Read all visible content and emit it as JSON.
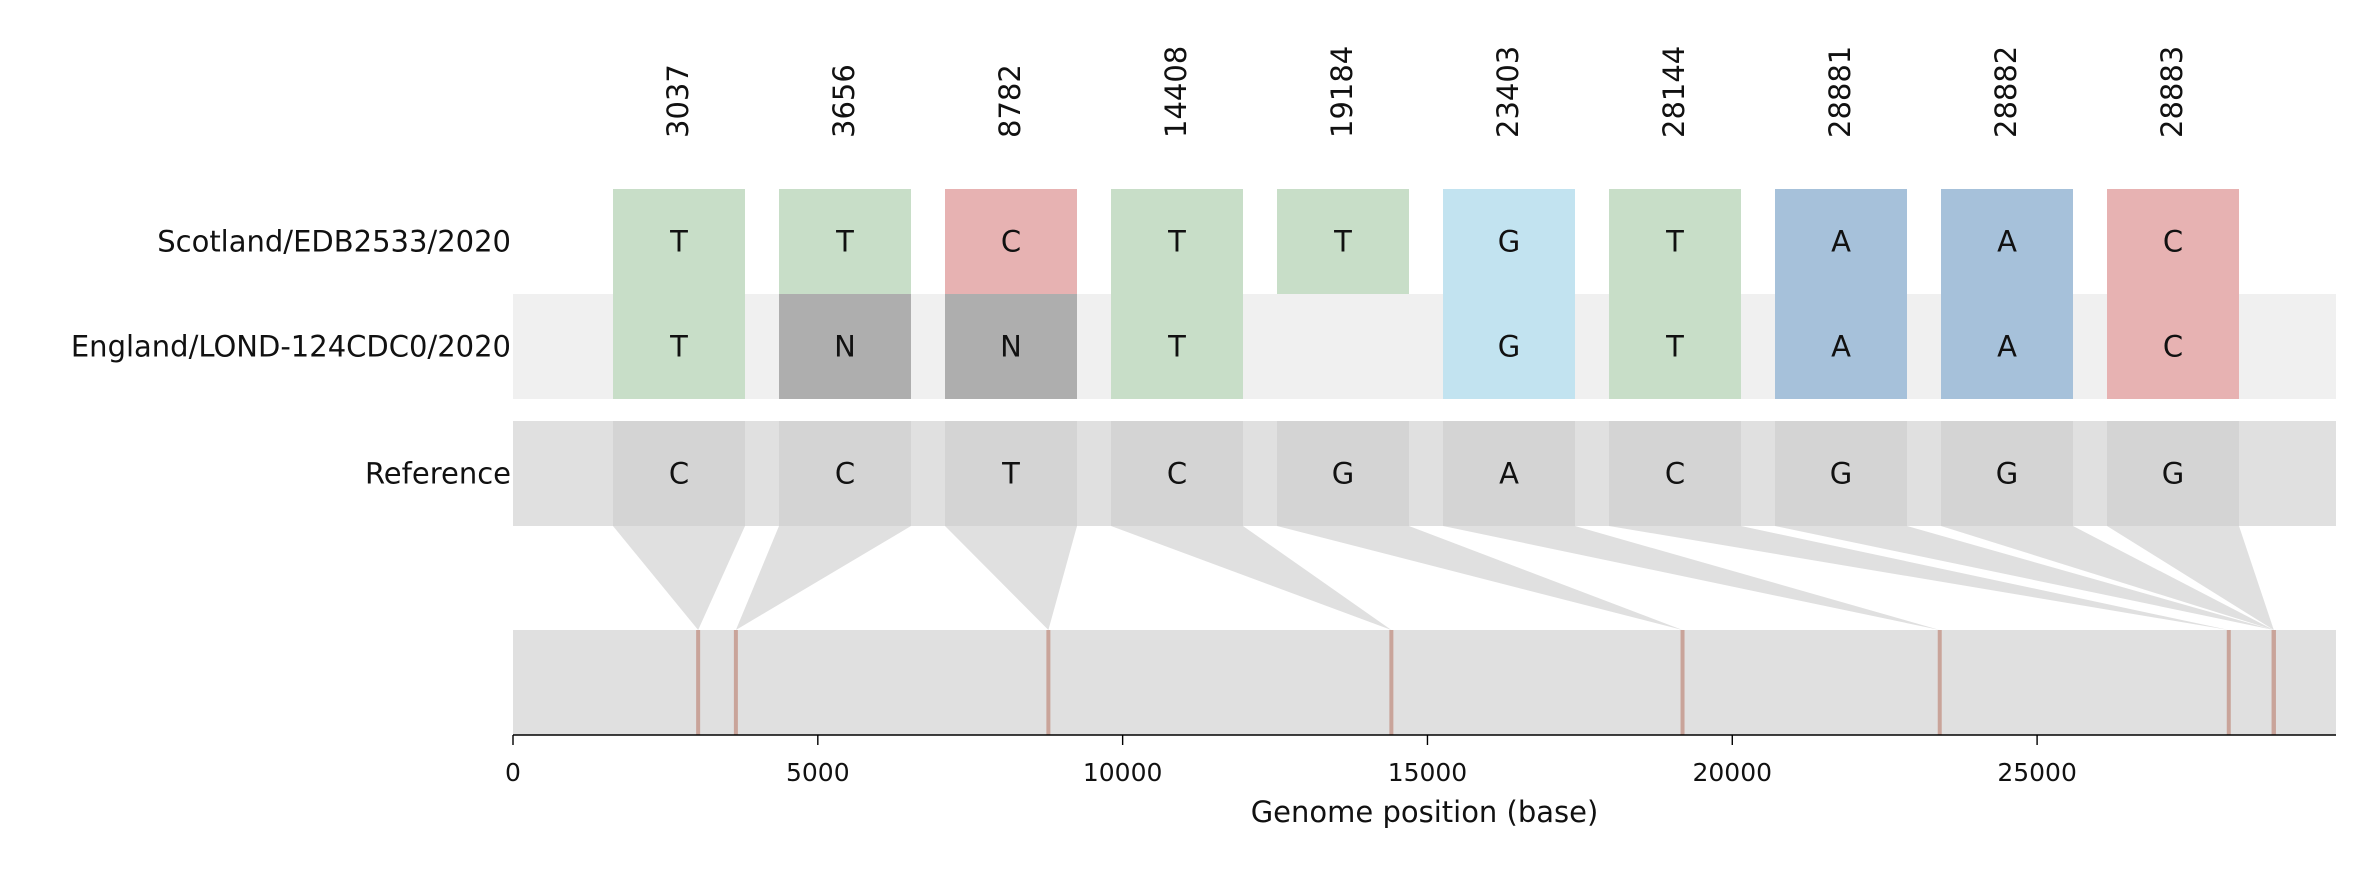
{
  "positions": [
    "3037",
    "3656",
    "8782",
    "14408",
    "19184",
    "23403",
    "28144",
    "28881",
    "28882",
    "28883"
  ],
  "sequences": [
    {
      "name": "Scotland/EDB2533/2020",
      "bases": [
        "T",
        "T",
        "C",
        "T",
        "T",
        "G",
        "T",
        "A",
        "A",
        "C"
      ]
    },
    {
      "name": "England/LOND-124CDC0/2020",
      "bases": [
        "T",
        "N",
        "N",
        "T",
        "",
        "G",
        "T",
        "A",
        "A",
        "C"
      ]
    }
  ],
  "reference": {
    "label": "Reference",
    "bases": [
      "C",
      "C",
      "T",
      "C",
      "G",
      "A",
      "C",
      "G",
      "G",
      "G"
    ]
  },
  "genome_axis": {
    "xlabel": "Genome position (base)",
    "min": 0,
    "max": 29903,
    "ticks": [
      "0",
      "5000",
      "10000",
      "15000",
      "20000",
      "25000"
    ]
  },
  "base_colors": {
    "T": "#c5dcc5",
    "C": "#e6adad",
    "G": "#bee1ef",
    "A": "#a0bdd8",
    "N": "#a9a9a9",
    "ref": "#d4d4d4"
  },
  "band_colors": {
    "alternate_row": "#f0f0f0",
    "reference_row": "#e0e0e0",
    "genome_bar": "#e0e0e0",
    "marker": "#c9a49a"
  }
}
